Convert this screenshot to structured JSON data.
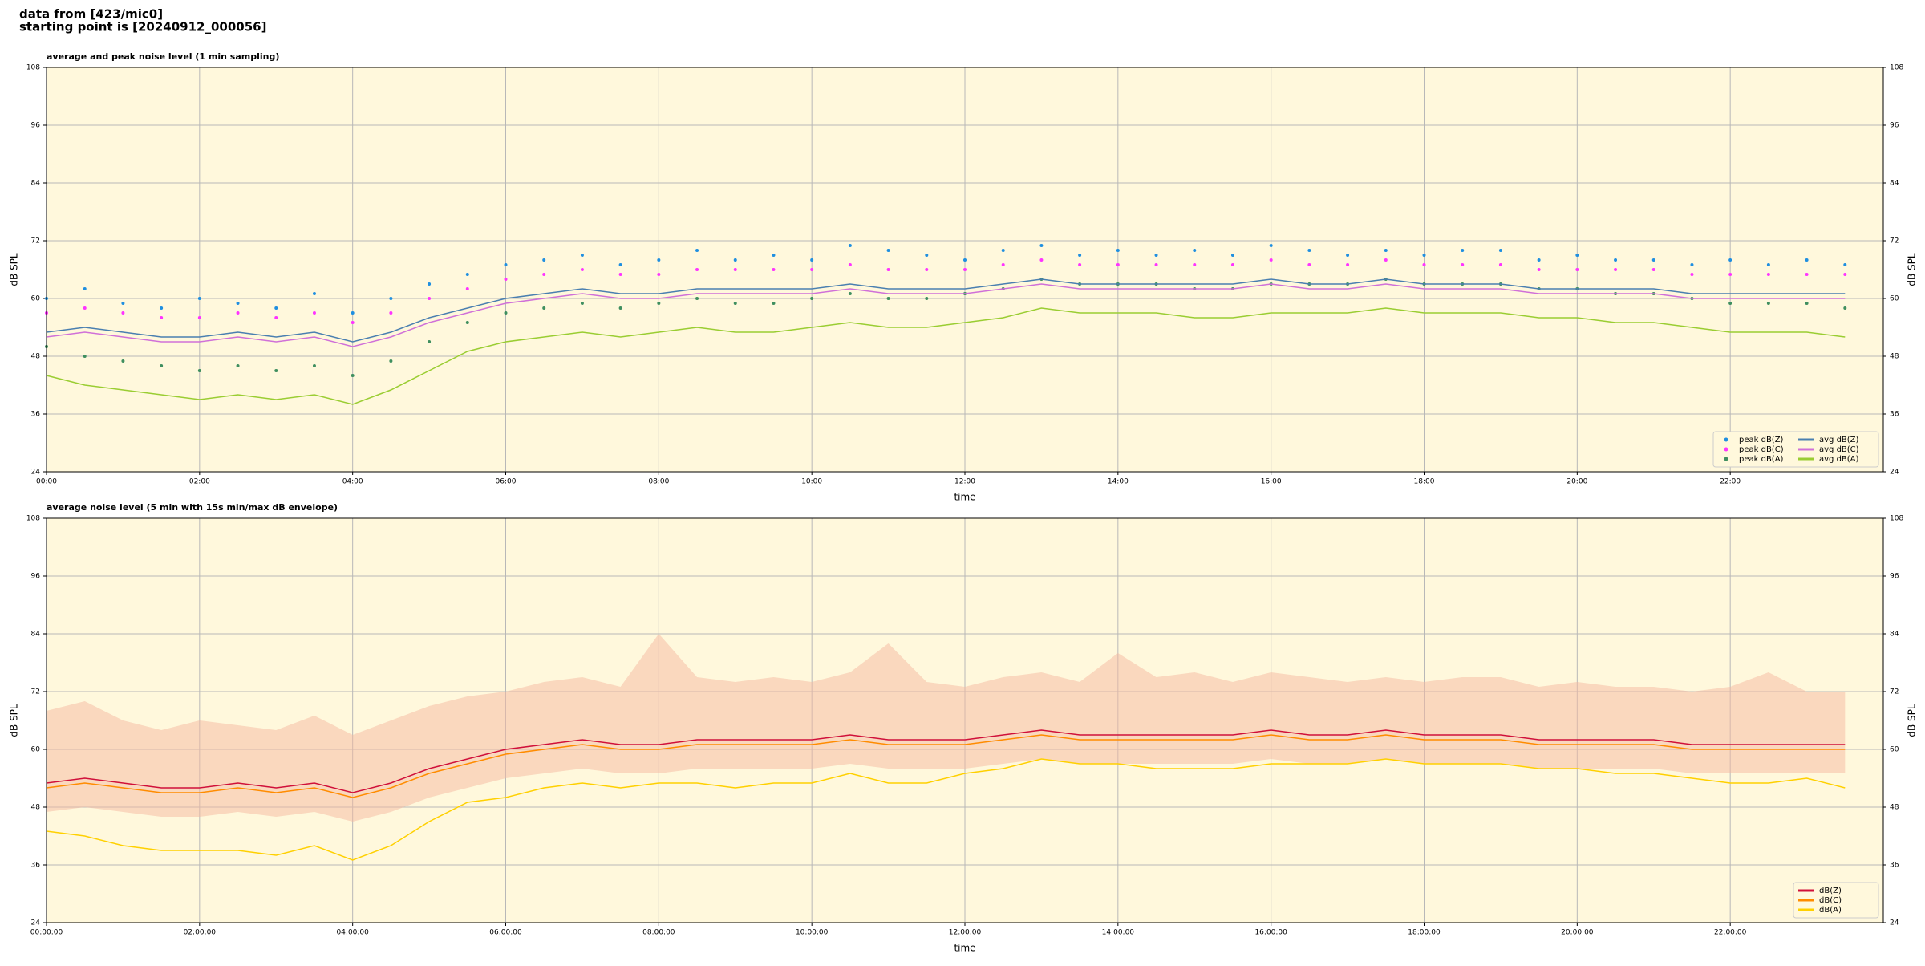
{
  "header": {
    "source": "data from [423/mic0]",
    "start": "starting point is [20240912_000056]"
  },
  "chart_data": [
    {
      "type": "line",
      "title": "average and peak noise level (1 min sampling)",
      "xlabel": "time",
      "ylabel": "dB SPL",
      "x": [
        0,
        0.5,
        1,
        1.5,
        2,
        2.5,
        3,
        3.5,
        4,
        4.5,
        5,
        5.5,
        6,
        6.5,
        7,
        7.5,
        8,
        8.5,
        9,
        9.5,
        10,
        10.5,
        11,
        11.5,
        12,
        12.5,
        13,
        13.5,
        14,
        14.5,
        15,
        15.5,
        16,
        16.5,
        17,
        17.5,
        18,
        18.5,
        19,
        19.5,
        20,
        20.5,
        21,
        21.5,
        22,
        22.5,
        23,
        23.5
      ],
      "xlim": [
        0,
        24
      ],
      "xticks": [
        {
          "value": 0,
          "label": "00:00"
        },
        {
          "value": 2,
          "label": "02:00"
        },
        {
          "value": 4,
          "label": "04:00"
        },
        {
          "value": 6,
          "label": "06:00"
        },
        {
          "value": 8,
          "label": "08:00"
        },
        {
          "value": 10,
          "label": "10:00"
        },
        {
          "value": 12,
          "label": "12:00"
        },
        {
          "value": 14,
          "label": "14:00"
        },
        {
          "value": 16,
          "label": "16:00"
        },
        {
          "value": 18,
          "label": "18:00"
        },
        {
          "value": 20,
          "label": "20:00"
        },
        {
          "value": 22,
          "label": "22:00"
        }
      ],
      "ylim": [
        24,
        108
      ],
      "yticks": [
        24,
        36,
        48,
        60,
        72,
        84,
        96,
        108
      ],
      "grid": true,
      "legend": "lower right",
      "legend_columns": 2,
      "series": [
        {
          "name": "peak dB(Z)",
          "type": "scatter",
          "color": "#1f8fe0",
          "values": [
            60,
            62,
            59,
            58,
            60,
            59,
            58,
            61,
            57,
            60,
            63,
            65,
            67,
            68,
            69,
            67,
            68,
            70,
            68,
            69,
            68,
            71,
            70,
            69,
            68,
            70,
            71,
            69,
            70,
            69,
            70,
            69,
            71,
            70,
            69,
            70,
            69,
            70,
            70,
            68,
            69,
            68,
            68,
            67,
            68,
            67,
            68,
            67
          ]
        },
        {
          "name": "peak dB(C)",
          "type": "scatter",
          "color": "#ff33ff",
          "values": [
            57,
            58,
            57,
            56,
            56,
            57,
            56,
            57,
            55,
            57,
            60,
            62,
            64,
            65,
            66,
            65,
            65,
            66,
            66,
            66,
            66,
            67,
            66,
            66,
            66,
            67,
            68,
            67,
            67,
            67,
            67,
            67,
            68,
            67,
            67,
            68,
            67,
            67,
            67,
            66,
            66,
            66,
            66,
            65,
            65,
            65,
            65,
            65
          ]
        },
        {
          "name": "peak dB(A)",
          "type": "scatter",
          "color": "#3f8f5f",
          "values": [
            50,
            48,
            47,
            46,
            45,
            46,
            45,
            46,
            44,
            47,
            51,
            55,
            57,
            58,
            59,
            58,
            59,
            60,
            59,
            59,
            60,
            61,
            60,
            60,
            61,
            62,
            64,
            63,
            63,
            63,
            62,
            62,
            63,
            63,
            63,
            64,
            63,
            63,
            63,
            62,
            62,
            61,
            61,
            60,
            59,
            59,
            59,
            58
          ]
        },
        {
          "name": "avg dB(Z)",
          "type": "line",
          "color": "#4a7fb0",
          "values": [
            53,
            54,
            53,
            52,
            52,
            53,
            52,
            53,
            51,
            53,
            56,
            58,
            60,
            61,
            62,
            61,
            61,
            62,
            62,
            62,
            62,
            63,
            62,
            62,
            62,
            63,
            64,
            63,
            63,
            63,
            63,
            63,
            64,
            63,
            63,
            64,
            63,
            63,
            63,
            62,
            62,
            62,
            62,
            61,
            61,
            61,
            61,
            61
          ]
        },
        {
          "name": "avg dB(C)",
          "type": "line",
          "color": "#d070d8",
          "values": [
            52,
            53,
            52,
            51,
            51,
            52,
            51,
            52,
            50,
            52,
            55,
            57,
            59,
            60,
            61,
            60,
            60,
            61,
            61,
            61,
            61,
            62,
            61,
            61,
            61,
            62,
            63,
            62,
            62,
            62,
            62,
            62,
            63,
            62,
            62,
            63,
            62,
            62,
            62,
            61,
            61,
            61,
            61,
            60,
            60,
            60,
            60,
            60
          ]
        },
        {
          "name": "avg dB(A)",
          "type": "line",
          "color": "#9acd32",
          "values": [
            44,
            42,
            41,
            40,
            39,
            40,
            39,
            40,
            38,
            41,
            45,
            49,
            51,
            52,
            53,
            52,
            53,
            54,
            53,
            53,
            54,
            55,
            54,
            54,
            55,
            56,
            58,
            57,
            57,
            57,
            56,
            56,
            57,
            57,
            57,
            58,
            57,
            57,
            57,
            56,
            56,
            55,
            55,
            54,
            53,
            53,
            53,
            52
          ]
        }
      ]
    },
    {
      "type": "line",
      "title": "average noise level (5 min with 15s min/max dB envelope)",
      "xlabel": "time",
      "ylabel": "dB SPL",
      "x": [
        0,
        0.5,
        1,
        1.5,
        2,
        2.5,
        3,
        3.5,
        4,
        4.5,
        5,
        5.5,
        6,
        6.5,
        7,
        7.5,
        8,
        8.5,
        9,
        9.5,
        10,
        10.5,
        11,
        11.5,
        12,
        12.5,
        13,
        13.5,
        14,
        14.5,
        15,
        15.5,
        16,
        16.5,
        17,
        17.5,
        18,
        18.5,
        19,
        19.5,
        20,
        20.5,
        21,
        21.5,
        22,
        22.5,
        23,
        23.5
      ],
      "xlim": [
        0,
        24
      ],
      "xticks": [
        {
          "value": 0,
          "label": "00:00:00"
        },
        {
          "value": 2,
          "label": "02:00:00"
        },
        {
          "value": 4,
          "label": "04:00:00"
        },
        {
          "value": 6,
          "label": "06:00:00"
        },
        {
          "value": 8,
          "label": "08:00:00"
        },
        {
          "value": 10,
          "label": "10:00:00"
        },
        {
          "value": 12,
          "label": "12:00:00"
        },
        {
          "value": 14,
          "label": "14:00:00"
        },
        {
          "value": 16,
          "label": "16:00:00"
        },
        {
          "value": 18,
          "label": "18:00:00"
        },
        {
          "value": 20,
          "label": "20:00:00"
        },
        {
          "value": 22,
          "label": "22:00:00"
        }
      ],
      "ylim": [
        24,
        108
      ],
      "yticks": [
        24,
        36,
        48,
        60,
        72,
        84,
        96,
        108
      ],
      "grid": true,
      "legend": "lower right",
      "legend_columns": 1,
      "envelope": {
        "color": "#f5b8a0",
        "low": [
          47,
          48,
          47,
          46,
          46,
          47,
          46,
          47,
          45,
          47,
          50,
          52,
          54,
          55,
          56,
          55,
          55,
          56,
          56,
          56,
          56,
          57,
          56,
          56,
          56,
          57,
          58,
          57,
          57,
          57,
          57,
          57,
          58,
          57,
          57,
          58,
          57,
          57,
          57,
          56,
          56,
          56,
          56,
          55,
          55,
          55,
          55,
          55
        ],
        "high": [
          68,
          70,
          66,
          64,
          66,
          65,
          64,
          67,
          63,
          66,
          69,
          71,
          72,
          74,
          75,
          73,
          84,
          75,
          74,
          75,
          74,
          76,
          82,
          74,
          73,
          75,
          76,
          74,
          80,
          75,
          76,
          74,
          76,
          75,
          74,
          75,
          74,
          75,
          75,
          73,
          74,
          73,
          73,
          72,
          73,
          76,
          72,
          72
        ]
      },
      "series": [
        {
          "name": "dB(Z)",
          "type": "line",
          "color": "#d0103a",
          "values": [
            53,
            54,
            53,
            52,
            52,
            53,
            52,
            53,
            51,
            53,
            56,
            58,
            60,
            61,
            62,
            61,
            61,
            62,
            62,
            62,
            62,
            63,
            62,
            62,
            62,
            63,
            64,
            63,
            63,
            63,
            63,
            63,
            64,
            63,
            63,
            64,
            63,
            63,
            63,
            62,
            62,
            62,
            62,
            61,
            61,
            61,
            61,
            61
          ]
        },
        {
          "name": "dB(C)",
          "type": "line",
          "color": "#ff8c00",
          "values": [
            52,
            53,
            52,
            51,
            51,
            52,
            51,
            52,
            50,
            52,
            55,
            57,
            59,
            60,
            61,
            60,
            60,
            61,
            61,
            61,
            61,
            62,
            61,
            61,
            61,
            62,
            63,
            62,
            62,
            62,
            62,
            62,
            63,
            62,
            62,
            63,
            62,
            62,
            62,
            61,
            61,
            61,
            61,
            60,
            60,
            60,
            60,
            60
          ]
        },
        {
          "name": "dB(A)",
          "type": "line",
          "color": "#ffd000",
          "values": [
            43,
            42,
            40,
            39,
            39,
            39,
            38,
            40,
            37,
            40,
            45,
            49,
            50,
            52,
            53,
            52,
            53,
            53,
            52,
            53,
            53,
            55,
            53,
            53,
            55,
            56,
            58,
            57,
            57,
            56,
            56,
            56,
            57,
            57,
            57,
            58,
            57,
            57,
            57,
            56,
            56,
            55,
            55,
            54,
            53,
            53,
            54,
            52
          ]
        }
      ]
    }
  ]
}
